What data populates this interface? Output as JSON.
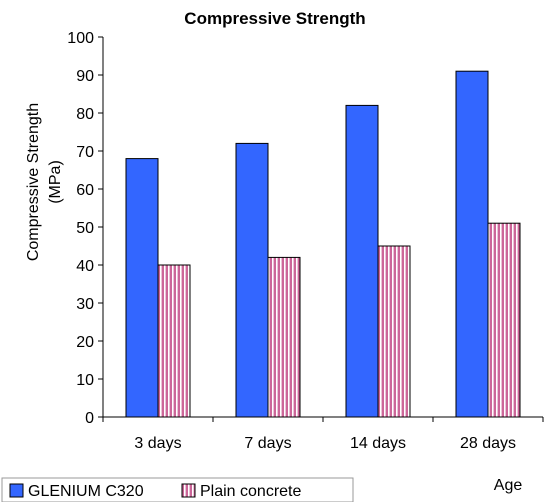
{
  "chart_data": {
    "type": "bar",
    "title": "Compressive Strength",
    "ylabel": [
      "Compressive Strength",
      "(MPa)"
    ],
    "xlabel": "Age",
    "categories": [
      "3 days",
      "7 days",
      "14 days",
      "28 days"
    ],
    "ylim": [
      0,
      100
    ],
    "yticks": [
      "0",
      "10",
      "20",
      "30",
      "40",
      "50",
      "60",
      "70",
      "80",
      "90",
      "100"
    ],
    "grid": false,
    "legend_position": "bottom-left",
    "series": [
      {
        "name": "GLENIUM C320",
        "values": [
          68,
          72,
          82,
          91
        ],
        "color": "#3366ff",
        "pattern": "solid"
      },
      {
        "name": "Plain concrete",
        "values": [
          40,
          42,
          45,
          51
        ],
        "color": "#cc6699",
        "pattern": "vertical-stripes"
      }
    ]
  }
}
